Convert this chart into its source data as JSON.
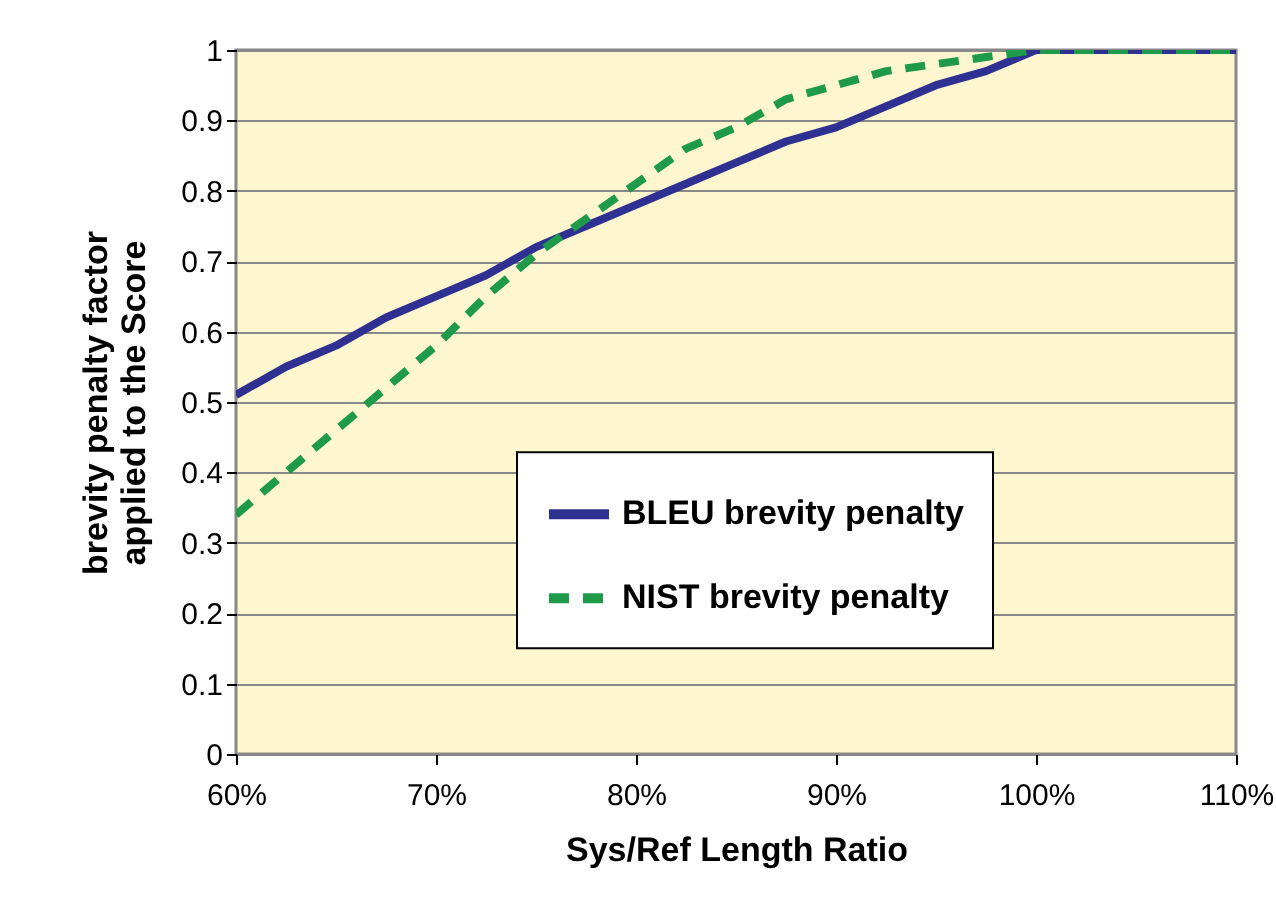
{
  "chart_data": {
    "type": "line",
    "xlabel": "Sys/Ref Length Ratio",
    "ylabel": "brevity penalty factor\napplied to the Score",
    "x": [
      60,
      62.5,
      65,
      67.5,
      70,
      72.5,
      75,
      77.5,
      80,
      82.5,
      85,
      87.5,
      90,
      92.5,
      95,
      97.5,
      100,
      105,
      110
    ],
    "series": [
      {
        "name": "BLEU brevity penalty",
        "color": "#2e3192",
        "line_style": "solid",
        "values": [
          0.51,
          0.55,
          0.58,
          0.62,
          0.65,
          0.68,
          0.72,
          0.75,
          0.78,
          0.81,
          0.84,
          0.87,
          0.89,
          0.92,
          0.95,
          0.97,
          1,
          1,
          1
        ]
      },
      {
        "name": "NIST brevity penalty",
        "color": "#1f9a4a",
        "line_style": "dashed",
        "values": [
          0.34,
          0.4,
          0.46,
          0.52,
          0.58,
          0.65,
          0.71,
          0.76,
          0.81,
          0.86,
          0.89,
          0.93,
          0.95,
          0.97,
          0.98,
          0.99,
          1,
          1,
          1
        ]
      }
    ],
    "xlim": [
      60,
      110
    ],
    "xticks": [
      {
        "value": 60,
        "label": "60%"
      },
      {
        "value": 70,
        "label": "70%"
      },
      {
        "value": 80,
        "label": "80%"
      },
      {
        "value": 90,
        "label": "90%"
      },
      {
        "value": 100,
        "label": "100%"
      },
      {
        "value": 110,
        "label": "110%"
      }
    ],
    "ylim": [
      0,
      1
    ],
    "yticks": [
      0,
      0.1,
      0.2,
      0.3,
      0.4,
      0.5,
      0.6,
      0.7,
      0.8,
      0.9,
      1
    ],
    "grid": "y",
    "legend": "bottom right",
    "marker": "none"
  }
}
